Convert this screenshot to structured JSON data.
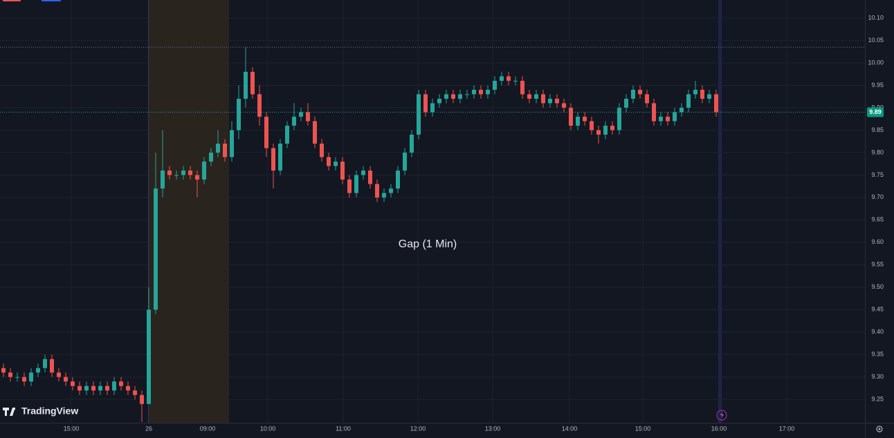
{
  "chart_data": {
    "type": "candlestick",
    "annotation": "Gap (1 Min)",
    "brand": "TradingView",
    "up_color": "#26a69a",
    "down_color": "#ef5350",
    "ylim": [
      9.198,
      10.14
    ],
    "yticks": [
      9.25,
      {
        "value": 9.3,
        "label": "9.30"
      },
      9.35,
      {
        "value": 9.4,
        "label": "9.40"
      },
      9.45,
      {
        "value": 9.5,
        "label": "9.50"
      },
      9.55,
      {
        "value": 9.6,
        "label": "9.60"
      },
      9.65,
      {
        "value": 9.7,
        "label": "9.70"
      },
      9.75,
      {
        "value": 9.8,
        "label": "9.80"
      },
      9.85,
      {
        "value": 9.9,
        "label": "9.90"
      },
      9.95,
      {
        "value": 10.0,
        "label": "10.00"
      },
      10.05,
      {
        "value": 10.1,
        "label": "10.10"
      }
    ],
    "xlim": [
      0,
      125
    ],
    "xticks": [
      {
        "value": 10.3,
        "label": "15:00"
      },
      {
        "value": 21.5,
        "label": "26"
      },
      {
        "value": 30.0,
        "label": "09:00"
      },
      {
        "value": 38.7,
        "label": "10:00"
      },
      {
        "value": 49.6,
        "label": "11:00"
      },
      {
        "value": 60.4,
        "label": "12:00"
      },
      {
        "value": 71.2,
        "label": "13:00"
      },
      {
        "value": 82.3,
        "label": "14:00"
      },
      {
        "value": 92.9,
        "label": "15:00"
      },
      {
        "value": 103.9,
        "label": "16:00"
      },
      {
        "value": 113.7,
        "label": "17:00"
      }
    ],
    "last_price": {
      "value": 9.89,
      "label": "9.89"
    },
    "high_line": 10.035,
    "x": [
      0.5,
      1.5,
      2.5,
      3.5,
      4.5,
      5.5,
      6.5,
      7.5,
      8.5,
      9.5,
      10.5,
      11.5,
      12.5,
      13.5,
      14.5,
      15.5,
      16.5,
      17.5,
      18.5,
      19.5,
      20.5,
      21.5,
      22.5,
      23.5,
      24.5,
      25.5,
      26.5,
      27.5,
      28.5,
      29.5,
      30.5,
      31.5,
      32.5,
      33.5,
      34.5,
      35.5,
      36.5,
      37.5,
      38.5,
      39.5,
      40.5,
      41.5,
      42.5,
      43.5,
      44.5,
      45.5,
      46.5,
      47.5,
      48.5,
      49.5,
      50.5,
      51.5,
      52.5,
      53.5,
      54.5,
      55.5,
      56.5,
      57.5,
      58.5,
      59.5,
      60.5,
      61.5,
      62.5,
      63.5,
      64.5,
      65.5,
      66.5,
      67.5,
      68.5,
      69.5,
      70.5,
      71.5,
      72.5,
      73.5,
      74.5,
      75.5,
      76.5,
      77.5,
      78.5,
      79.5,
      80.5,
      81.5,
      82.5,
      83.5,
      84.5,
      85.5,
      86.5,
      87.5,
      88.5,
      89.5,
      90.5,
      91.5,
      92.5,
      93.5,
      94.5,
      95.5,
      96.5,
      97.5,
      98.5,
      99.5,
      100.5,
      101.5,
      102.5,
      103.5
    ],
    "open": [
      9.32,
      9.31,
      9.3,
      9.3,
      9.29,
      9.31,
      9.32,
      9.34,
      9.31,
      9.3,
      9.29,
      9.28,
      9.27,
      9.28,
      9.27,
      9.28,
      9.27,
      9.29,
      9.28,
      9.27,
      9.26,
      9.24,
      9.45,
      9.72,
      9.76,
      9.75,
      9.75,
      9.76,
      9.75,
      9.74,
      9.78,
      9.8,
      9.82,
      9.79,
      9.85,
      9.92,
      9.98,
      9.93,
      9.88,
      9.81,
      9.76,
      9.82,
      9.86,
      9.88,
      9.89,
      9.87,
      9.82,
      9.79,
      9.77,
      9.78,
      9.74,
      9.71,
      9.75,
      9.76,
      9.73,
      9.7,
      9.71,
      9.72,
      9.76,
      9.8,
      9.84,
      9.93,
      9.89,
      9.91,
      9.92,
      9.93,
      9.92,
      9.93,
      9.93,
      9.94,
      9.93,
      9.94,
      9.96,
      9.97,
      9.96,
      9.96,
      9.93,
      9.92,
      9.93,
      9.91,
      9.92,
      9.91,
      9.9,
      9.86,
      9.88,
      9.87,
      9.85,
      9.84,
      9.86,
      9.85,
      9.9,
      9.92,
      9.94,
      9.93,
      9.91,
      9.87,
      9.88,
      9.87,
      9.89,
      9.9,
      9.93,
      9.94,
      9.92,
      9.93
    ],
    "high": [
      9.33,
      9.32,
      9.31,
      9.31,
      9.32,
      9.33,
      9.35,
      9.35,
      9.32,
      9.31,
      9.3,
      9.29,
      9.29,
      9.29,
      9.29,
      9.29,
      9.3,
      9.3,
      9.29,
      9.28,
      9.27,
      9.5,
      9.8,
      9.85,
      9.77,
      9.76,
      9.77,
      9.77,
      9.76,
      9.79,
      9.81,
      9.85,
      9.83,
      9.87,
      9.95,
      10.035,
      9.99,
      9.95,
      9.89,
      9.82,
      9.83,
      9.87,
      9.91,
      9.9,
      9.91,
      9.88,
      9.83,
      9.8,
      9.79,
      9.79,
      9.75,
      9.76,
      9.77,
      9.77,
      9.74,
      9.72,
      9.73,
      9.77,
      9.81,
      9.85,
      9.94,
      9.94,
      9.92,
      9.93,
      9.94,
      9.94,
      9.94,
      9.94,
      9.95,
      9.95,
      9.95,
      9.97,
      9.98,
      9.98,
      9.97,
      9.97,
      9.94,
      9.94,
      9.94,
      9.93,
      9.93,
      9.92,
      9.91,
      9.89,
      9.89,
      9.88,
      9.86,
      9.87,
      9.87,
      9.91,
      9.93,
      9.95,
      9.95,
      9.94,
      9.92,
      9.89,
      9.89,
      9.9,
      9.91,
      9.94,
      9.96,
      9.95,
      9.94,
      9.94
    ],
    "low": [
      9.3,
      9.29,
      9.29,
      9.28,
      9.28,
      9.3,
      9.31,
      9.3,
      9.29,
      9.28,
      9.27,
      9.26,
      9.26,
      9.26,
      9.26,
      9.26,
      9.26,
      9.27,
      9.26,
      9.25,
      9.2,
      9.24,
      9.44,
      9.7,
      9.74,
      9.74,
      9.74,
      9.74,
      9.7,
      9.73,
      9.77,
      9.79,
      9.78,
      9.78,
      9.83,
      9.9,
      9.92,
      9.86,
      9.79,
      9.72,
      9.75,
      9.81,
      9.85,
      9.87,
      9.86,
      9.81,
      9.78,
      9.76,
      9.76,
      9.73,
      9.7,
      9.7,
      9.74,
      9.72,
      9.69,
      9.69,
      9.7,
      9.71,
      9.75,
      9.79,
      9.83,
      9.88,
      9.88,
      9.9,
      9.91,
      9.91,
      9.91,
      9.92,
      9.92,
      9.92,
      9.92,
      9.93,
      9.95,
      9.95,
      9.95,
      9.92,
      9.91,
      9.91,
      9.9,
      9.9,
      9.9,
      9.89,
      9.85,
      9.85,
      9.86,
      9.84,
      9.82,
      9.83,
      9.84,
      9.84,
      9.89,
      9.91,
      9.92,
      9.9,
      9.86,
      9.86,
      9.86,
      9.86,
      9.88,
      9.89,
      9.92,
      9.91,
      9.91,
      9.88
    ],
    "close": [
      9.31,
      9.3,
      9.3,
      9.29,
      9.31,
      9.32,
      9.34,
      9.31,
      9.3,
      9.29,
      9.28,
      9.27,
      9.28,
      9.27,
      9.28,
      9.27,
      9.29,
      9.28,
      9.27,
      9.26,
      9.24,
      9.45,
      9.72,
      9.76,
      9.75,
      9.75,
      9.76,
      9.75,
      9.74,
      9.78,
      9.8,
      9.82,
      9.79,
      9.85,
      9.92,
      9.98,
      9.93,
      9.88,
      9.81,
      9.76,
      9.82,
      9.86,
      9.88,
      9.89,
      9.87,
      9.82,
      9.79,
      9.77,
      9.78,
      9.74,
      9.71,
      9.75,
      9.76,
      9.73,
      9.7,
      9.71,
      9.72,
      9.76,
      9.8,
      9.84,
      9.93,
      9.89,
      9.91,
      9.92,
      9.93,
      9.92,
      9.93,
      9.93,
      9.94,
      9.93,
      9.94,
      9.96,
      9.97,
      9.96,
      9.96,
      9.93,
      9.92,
      9.93,
      9.91,
      9.92,
      9.91,
      9.9,
      9.86,
      9.88,
      9.87,
      9.85,
      9.84,
      9.86,
      9.85,
      9.9,
      9.92,
      9.94,
      9.93,
      9.91,
      9.87,
      9.88,
      9.87,
      9.89,
      9.9,
      9.93,
      9.94,
      9.92,
      9.93,
      9.89
    ]
  }
}
